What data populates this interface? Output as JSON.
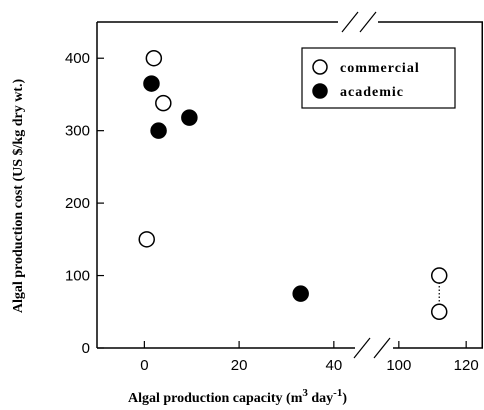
{
  "chart_data": {
    "type": "scatter",
    "xlabel": "Algal production capacity (m",
    "xlabel_sup": "3",
    "xlabel_mid": " day",
    "xlabel_sup2": "-1",
    "xlabel_end": ")",
    "ylabel": "Algal production cost (US $/kg dry wt.)",
    "xlim": [
      -10,
      125
    ],
    "x_axis_break": [
      47,
      95
    ],
    "ylim": [
      0,
      450
    ],
    "x_ticks": [
      0,
      20,
      40,
      100,
      120
    ],
    "x_tick_labels": [
      "0",
      "20",
      "40",
      "100",
      "120"
    ],
    "y_ticks": [
      0,
      100,
      200,
      300,
      400
    ],
    "y_tick_labels": [
      "0",
      "100",
      "200",
      "300",
      "400"
    ],
    "legend_position": "top-right",
    "series": [
      {
        "name": "commercial",
        "marker": "open-circle",
        "color": "#000000",
        "points": [
          {
            "x": 2,
            "y": 400
          },
          {
            "x": 4,
            "y": 338
          },
          {
            "x": 0.5,
            "y": 150
          },
          {
            "x": 112,
            "y": 100
          },
          {
            "x": 112,
            "y": 50
          }
        ]
      },
      {
        "name": "academic",
        "marker": "filled-circle",
        "color": "#000000",
        "points": [
          {
            "x": 1.5,
            "y": 365
          },
          {
            "x": 3,
            "y": 300
          },
          {
            "x": 9.5,
            "y": 318
          },
          {
            "x": 33,
            "y": 75
          }
        ]
      }
    ],
    "connector": {
      "style": "dotted",
      "from": {
        "x": 112,
        "y": 100
      },
      "to": {
        "x": 112,
        "y": 50
      }
    }
  }
}
